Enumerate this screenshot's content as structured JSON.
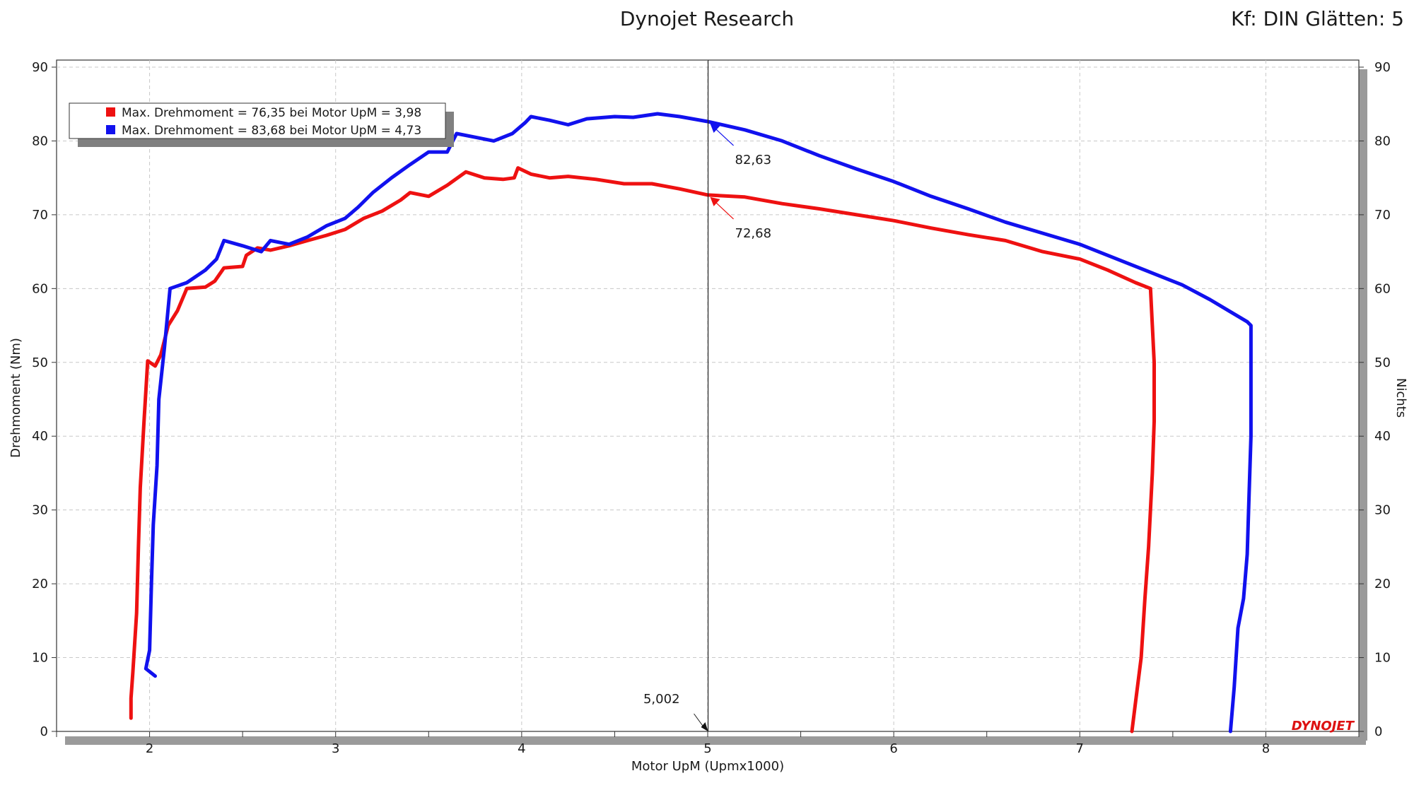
{
  "header": {
    "title": "Dynojet Research",
    "settings": "Kf: DIN Glätten: 5"
  },
  "logo_text": "DYNOJET",
  "cursor": {
    "x_label": "5,002",
    "x": 5.002,
    "readouts": [
      "82,63",
      "72,68"
    ]
  },
  "chart_data": {
    "type": "line",
    "xlabel": "Motor UpM (Upmx1000)",
    "ylabel": "Drehmoment (Nm)",
    "y2label": "Nichts",
    "xlim": [
      1.5,
      8.5
    ],
    "ylim": [
      0,
      90
    ],
    "x_ticks": [
      "2",
      "3",
      "4",
      "5",
      "6",
      "7",
      "8"
    ],
    "y_ticks": [
      "0",
      "10",
      "20",
      "30",
      "40",
      "50",
      "60",
      "70",
      "80",
      "90"
    ],
    "y2_ticks": [
      "0",
      "10",
      "20",
      "30",
      "40",
      "50",
      "60",
      "70",
      "80",
      "90"
    ],
    "grid": true,
    "legend_position": "top-left",
    "series": [
      {
        "name": "Max. Drehmoment = 76,35 bei Motor UpM = 3,98",
        "color": "#ee1111",
        "points": [
          [
            1.9,
            1.8
          ],
          [
            1.9,
            4.5
          ],
          [
            1.91,
            8
          ],
          [
            1.93,
            16
          ],
          [
            1.94,
            25
          ],
          [
            1.95,
            33
          ],
          [
            1.97,
            42
          ],
          [
            1.99,
            50.2
          ],
          [
            2.03,
            49.5
          ],
          [
            2.06,
            51
          ],
          [
            2.1,
            55
          ],
          [
            2.15,
            57
          ],
          [
            2.2,
            60
          ],
          [
            2.3,
            60.2
          ],
          [
            2.35,
            61
          ],
          [
            2.4,
            62.8
          ],
          [
            2.5,
            63
          ],
          [
            2.52,
            64.5
          ],
          [
            2.58,
            65.5
          ],
          [
            2.65,
            65.2
          ],
          [
            2.75,
            65.8
          ],
          [
            2.85,
            66.5
          ],
          [
            2.95,
            67.2
          ],
          [
            3.05,
            68
          ],
          [
            3.15,
            69.5
          ],
          [
            3.25,
            70.5
          ],
          [
            3.35,
            72
          ],
          [
            3.4,
            73
          ],
          [
            3.5,
            72.5
          ],
          [
            3.6,
            74
          ],
          [
            3.7,
            75.8
          ],
          [
            3.8,
            75
          ],
          [
            3.9,
            74.8
          ],
          [
            3.96,
            75
          ],
          [
            3.98,
            76.35
          ],
          [
            4.05,
            75.5
          ],
          [
            4.15,
            75
          ],
          [
            4.25,
            75.2
          ],
          [
            4.4,
            74.8
          ],
          [
            4.55,
            74.2
          ],
          [
            4.7,
            74.2
          ],
          [
            4.85,
            73.5
          ],
          [
            5.0,
            72.68
          ],
          [
            5.2,
            72.4
          ],
          [
            5.4,
            71.5
          ],
          [
            5.6,
            70.8
          ],
          [
            5.8,
            70
          ],
          [
            6.0,
            69.2
          ],
          [
            6.2,
            68.2
          ],
          [
            6.4,
            67.3
          ],
          [
            6.6,
            66.5
          ],
          [
            6.8,
            65
          ],
          [
            7.0,
            64
          ],
          [
            7.15,
            62.5
          ],
          [
            7.3,
            60.8
          ],
          [
            7.38,
            60
          ],
          [
            7.39,
            55
          ],
          [
            7.4,
            50
          ],
          [
            7.4,
            42
          ],
          [
            7.39,
            35
          ],
          [
            7.37,
            25
          ],
          [
            7.35,
            18
          ],
          [
            7.33,
            10
          ],
          [
            7.3,
            4
          ],
          [
            7.28,
            0
          ]
        ]
      },
      {
        "name": "Max. Drehmoment = 83,68 bei Motor UpM = 4,73",
        "color": "#1111ee",
        "points": [
          [
            2.03,
            7.5
          ],
          [
            1.98,
            8.5
          ],
          [
            2.0,
            11
          ],
          [
            2.01,
            20
          ],
          [
            2.02,
            28
          ],
          [
            2.04,
            36
          ],
          [
            2.05,
            45
          ],
          [
            2.08,
            52
          ],
          [
            2.11,
            60
          ],
          [
            2.2,
            60.8
          ],
          [
            2.3,
            62.5
          ],
          [
            2.36,
            64
          ],
          [
            2.4,
            66.5
          ],
          [
            2.5,
            65.8
          ],
          [
            2.6,
            65
          ],
          [
            2.65,
            66.5
          ],
          [
            2.75,
            66
          ],
          [
            2.85,
            67
          ],
          [
            2.95,
            68.5
          ],
          [
            3.05,
            69.5
          ],
          [
            3.12,
            71
          ],
          [
            3.2,
            73
          ],
          [
            3.3,
            75
          ],
          [
            3.4,
            76.8
          ],
          [
            3.5,
            78.5
          ],
          [
            3.6,
            78.5
          ],
          [
            3.65,
            81
          ],
          [
            3.75,
            80.5
          ],
          [
            3.85,
            80
          ],
          [
            3.95,
            81
          ],
          [
            4.02,
            82.5
          ],
          [
            4.05,
            83.3
          ],
          [
            4.15,
            82.8
          ],
          [
            4.25,
            82.2
          ],
          [
            4.35,
            83
          ],
          [
            4.5,
            83.3
          ],
          [
            4.6,
            83.2
          ],
          [
            4.73,
            83.68
          ],
          [
            4.85,
            83.3
          ],
          [
            5.0,
            82.63
          ],
          [
            5.2,
            81.5
          ],
          [
            5.4,
            80
          ],
          [
            5.6,
            78
          ],
          [
            5.8,
            76.2
          ],
          [
            6.0,
            74.5
          ],
          [
            6.2,
            72.5
          ],
          [
            6.4,
            70.8
          ],
          [
            6.6,
            69
          ],
          [
            6.8,
            67.5
          ],
          [
            7.0,
            66
          ],
          [
            7.2,
            64
          ],
          [
            7.4,
            62
          ],
          [
            7.55,
            60.5
          ],
          [
            7.7,
            58.5
          ],
          [
            7.8,
            57
          ],
          [
            7.9,
            55.5
          ],
          [
            7.92,
            55
          ],
          [
            7.92,
            48
          ],
          [
            7.92,
            40
          ],
          [
            7.91,
            32
          ],
          [
            7.9,
            24
          ],
          [
            7.88,
            18
          ],
          [
            7.85,
            14
          ],
          [
            7.83,
            6
          ],
          [
            7.81,
            0
          ]
        ]
      }
    ]
  }
}
